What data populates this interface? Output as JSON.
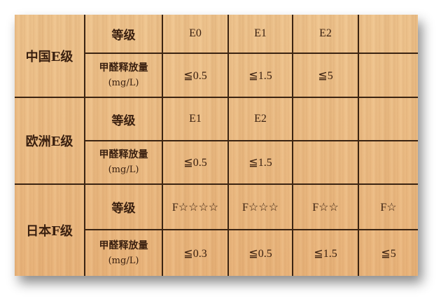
{
  "row_labels": {
    "grade": "等级",
    "emission": "甲醛释放量",
    "unit": "(mg/L)"
  },
  "groups": [
    {
      "name": "中国E级",
      "grades": [
        "E0",
        "E1",
        "E2",
        ""
      ],
      "emissions": [
        "≦0.5",
        "≦1.5",
        "≦5",
        ""
      ]
    },
    {
      "name": "欧洲E级",
      "grades": [
        "E1",
        "E2",
        "",
        ""
      ],
      "emissions": [
        "≦0.5",
        "≦1.5",
        "",
        ""
      ]
    },
    {
      "name": "日本F级",
      "grades": [
        "F☆☆☆☆",
        "F☆☆☆",
        "F☆☆",
        "F☆"
      ],
      "emissions": [
        "≦0.3",
        "≦0.5",
        "≦1.5",
        "≦5"
      ]
    }
  ],
  "colors": {
    "wood": "#ecbc84",
    "lines": "#3b2412",
    "text": "#3a2010"
  }
}
